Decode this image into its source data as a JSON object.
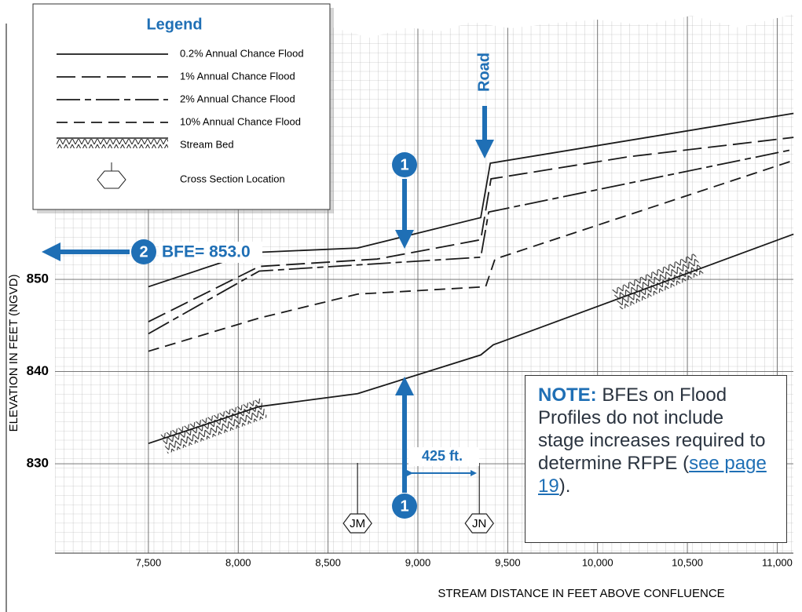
{
  "chart_data": {
    "type": "line",
    "xlabel": "STREAM DISTANCE IN FEET ABOVE CONFLUENCE",
    "ylabel": "ELEVATION IN FEET (NGVD)",
    "xlim": [
      6980,
      11090
    ],
    "ylim": [
      820.3,
      878.6
    ],
    "xticks": [
      {
        "value": 7500,
        "label": "7,500"
      },
      {
        "value": 8000,
        "label": "8,000"
      },
      {
        "value": 8500,
        "label": "8,500"
      },
      {
        "value": 9000,
        "label": "9,000"
      },
      {
        "value": 9500,
        "label": "9,500"
      },
      {
        "value": 10000,
        "label": "10,000"
      },
      {
        "value": 10500,
        "label": "10,500"
      },
      {
        "value": 11000,
        "label": "11,000"
      }
    ],
    "yticks": [
      830,
      840,
      850
    ],
    "grid": true,
    "legend_title": "Legend",
    "cross_section_label": "Cross Section Location",
    "series": [
      {
        "name": "0.2% Annual Chance Flood",
        "color": "#1a1a1a",
        "x": [
          7500,
          8073,
          8664,
          9350,
          9403,
          11091
        ],
        "values": [
          849.2,
          852.9,
          853.4,
          856.7,
          862.6,
          868.0
        ]
      },
      {
        "name": "1% Annual Chance Flood",
        "color": "#1a1a1a",
        "x": [
          7500,
          8117,
          8773,
          9350,
          9407,
          10173,
          11091
        ],
        "values": [
          845.4,
          851.4,
          852.2,
          854.3,
          860.9,
          863.3,
          865.4
        ]
      },
      {
        "name": "2% Annual Chance Flood",
        "color": "#1a1a1a",
        "x": [
          7500,
          8117,
          9350,
          9394,
          11091
        ],
        "values": [
          844.1,
          850.9,
          852.4,
          857.3,
          864.1
        ]
      },
      {
        "name": "10% Annual Chance Flood",
        "color": "#1a1a1a",
        "x": [
          7500,
          8117,
          8664,
          9377,
          9429,
          11091
        ],
        "values": [
          842.2,
          845.8,
          848.4,
          849.2,
          852.2,
          862.9
        ]
      },
      {
        "name": "Stream Bed",
        "color": "#1a1a1a",
        "x": [
          7500,
          8117,
          8664,
          9350,
          9420,
          11091
        ],
        "values": [
          832.2,
          836.2,
          837.6,
          841.8,
          842.9,
          854.9
        ]
      }
    ],
    "cross_sections": [
      {
        "label": "JM",
        "x": 8664
      },
      {
        "label": "JN",
        "x": 9342
      }
    ],
    "annotations": {
      "road": "Road",
      "marker_1": "1",
      "marker_2": "2",
      "bfe": "BFE= 853.0",
      "distance": "425 ft.",
      "note_title": "NOTE:",
      "note_text": "BFEs on Flood Profiles do not include stage increases required to determine RFPE (",
      "note_link": "see page 19",
      "note_end": ")."
    }
  }
}
